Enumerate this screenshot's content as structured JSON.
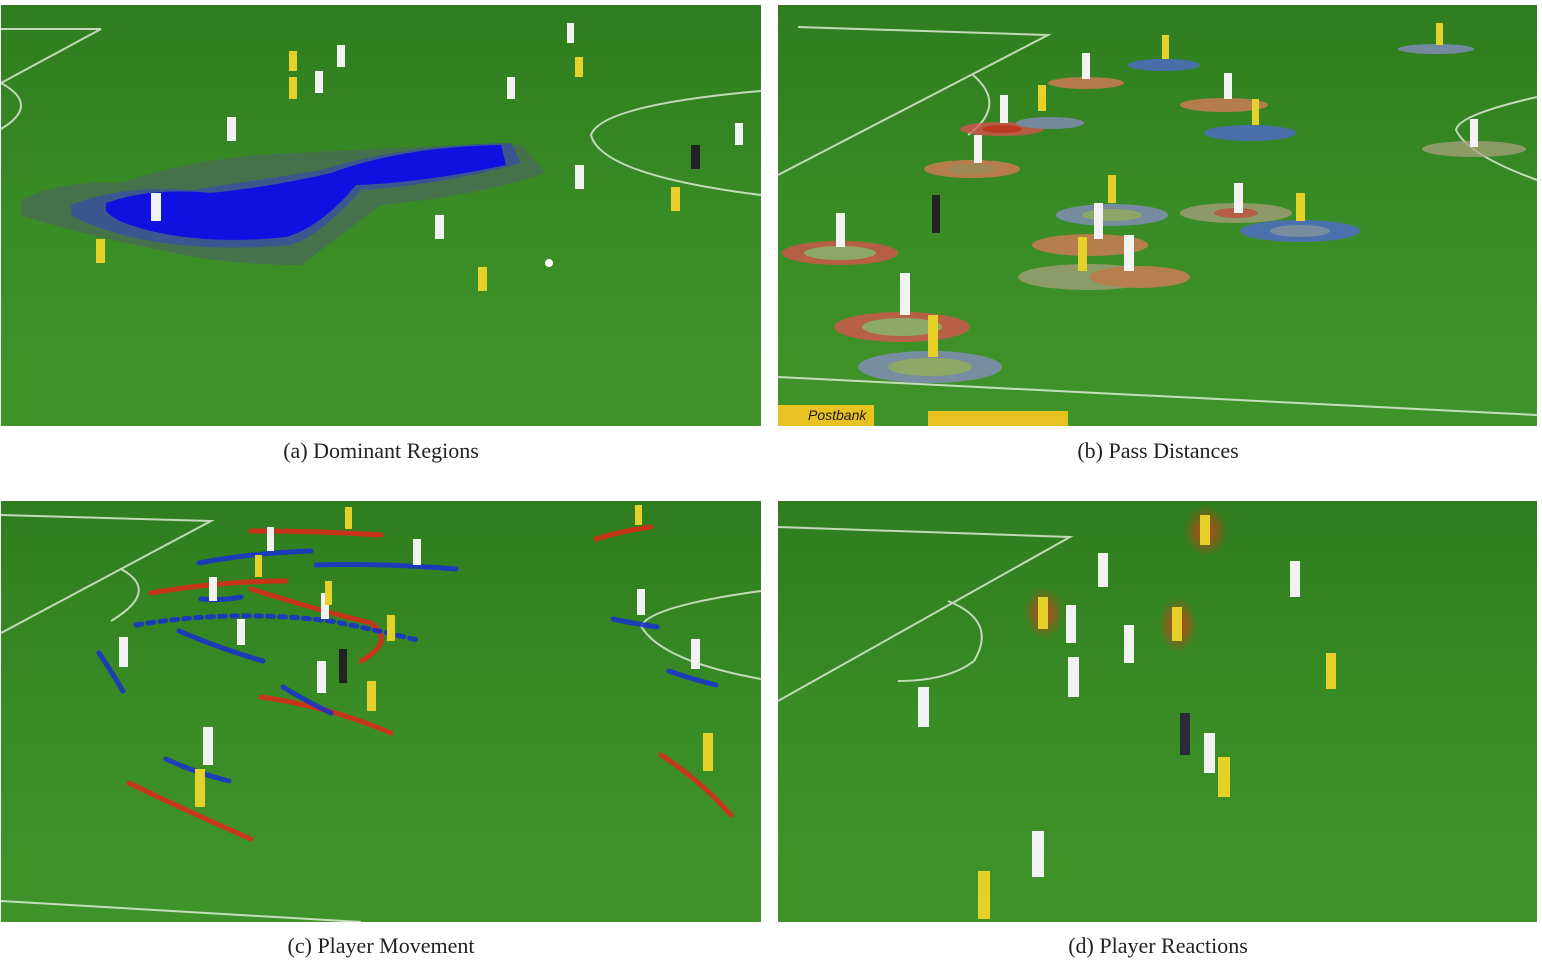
{
  "figure": {
    "panels": [
      {
        "id": "a",
        "caption": "(a) Dominant Regions"
      },
      {
        "id": "b",
        "caption": "(b) Pass Distances"
      },
      {
        "id": "c",
        "caption": "(c) Player Movement"
      },
      {
        "id": "d",
        "caption": "(d) Player Reactions"
      }
    ],
    "banner_text": "Postbank"
  },
  "colors": {
    "pitch": "#3a8d26",
    "line": "#e8f0e0",
    "team_yellow": "#e6d12a",
    "team_white": "#f2f2f2",
    "referee": "#222222",
    "dominant_region": "#1010e0",
    "pass_red": "#e05050",
    "pass_blue": "#5068d8",
    "move_red": "#e02818",
    "move_blue": "#1830d0",
    "reaction_glow": "#d83a14"
  }
}
